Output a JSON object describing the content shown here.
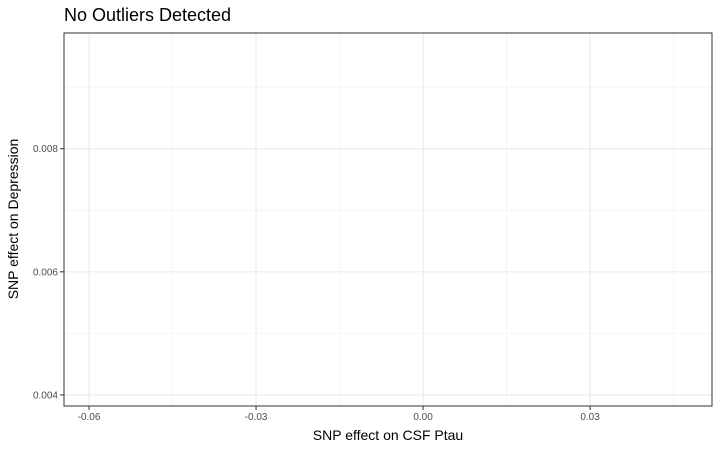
{
  "chart_data": {
    "type": "scatter",
    "title": "No Outliers Detected",
    "xlabel": "SNP effect on CSF Ptau",
    "ylabel": "SNP effect on Depression",
    "xlim": [
      -0.0645,
      0.0519
    ],
    "ylim": [
      0.00382,
      0.00988
    ],
    "x_ticks": [
      -0.06,
      -0.03,
      0.0,
      0.03
    ],
    "x_tick_labels": [
      "-0.06",
      "-0.03",
      "0.00",
      "0.03"
    ],
    "y_ticks": [
      0.004,
      0.006,
      0.008
    ],
    "y_tick_labels": [
      "0.004",
      "0.006",
      "0.008"
    ],
    "grid": true,
    "points": []
  },
  "colors": {
    "background": "#ffffff",
    "panel_border": "#333333",
    "grid_major": "#ebebeb",
    "grid_minor": "#f5f5f5",
    "tick_text": "#4d4d4d",
    "text": "#000000"
  }
}
